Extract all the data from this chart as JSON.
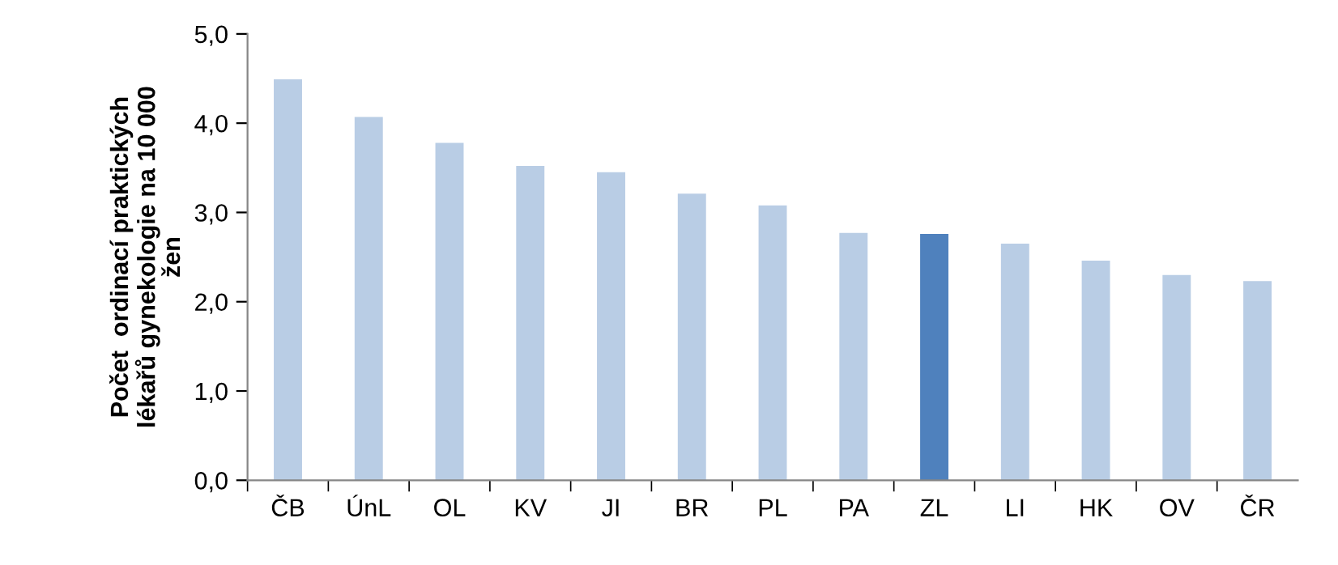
{
  "chart_data": {
    "type": "bar",
    "ylabel": "Počet  ordinací praktických\nlékařů gynekologie na 10 000\nžen",
    "categories": [
      "ČB",
      "ÚnL",
      "OL",
      "KV",
      "JI",
      "BR",
      "PL",
      "PA",
      "ZL",
      "LI",
      "HK",
      "OV",
      "ČR"
    ],
    "values": [
      4.49,
      4.07,
      3.78,
      3.52,
      3.45,
      3.21,
      3.08,
      2.77,
      2.76,
      2.65,
      2.46,
      2.3,
      2.23
    ],
    "colors": [
      "#b9cde5",
      "#b9cde5",
      "#b9cde5",
      "#b9cde5",
      "#b9cde5",
      "#b9cde5",
      "#b9cde5",
      "#b9cde5",
      "#4f81bd",
      "#b9cde5",
      "#b9cde5",
      "#b9cde5",
      "#b9cde5"
    ],
    "ylim": [
      0,
      5
    ],
    "yticks": [
      {
        "value": 0,
        "label": "0,0"
      },
      {
        "value": 1,
        "label": "1,0"
      },
      {
        "value": 2,
        "label": "2,0"
      },
      {
        "value": 3,
        "label": "3,0"
      },
      {
        "value": 4,
        "label": "4,0"
      },
      {
        "value": 5,
        "label": "5,0"
      }
    ],
    "grid": false,
    "legend": false
  }
}
